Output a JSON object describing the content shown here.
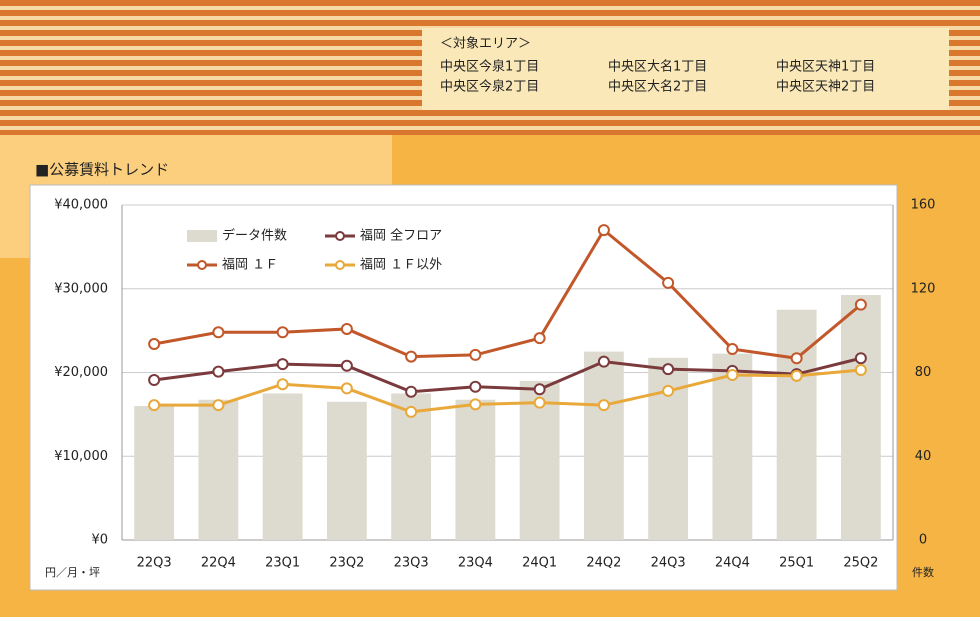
{
  "header": {
    "area_title": "＜対象エリア＞",
    "areas": [
      "中央区今泉1丁目",
      "中央区大名1丁目",
      "中央区天神1丁目",
      "中央区今泉2丁目",
      "中央区大名2丁目",
      "中央区天神2丁目"
    ]
  },
  "section_title": "■公募賃料トレンド",
  "chart_data": {
    "type": "bar-line",
    "y_unit_label": "円／月・坪",
    "y2_unit_label": "件数",
    "categories": [
      "22Q3",
      "22Q4",
      "23Q1",
      "23Q2",
      "23Q3",
      "23Q4",
      "24Q1",
      "24Q2",
      "24Q3",
      "24Q4",
      "25Q1",
      "25Q2"
    ],
    "ylim": [
      0,
      40000
    ],
    "yticks": [
      {
        "value": 0,
        "label": "¥0"
      },
      {
        "value": 10000,
        "label": "¥10,000"
      },
      {
        "value": 20000,
        "label": "¥20,000"
      },
      {
        "value": 30000,
        "label": "¥30,000"
      },
      {
        "value": 40000,
        "label": "¥40,000"
      }
    ],
    "y2lim": [
      0,
      160
    ],
    "y2ticks": [
      0,
      40,
      80,
      120,
      160
    ],
    "series": [
      {
        "name": "データ件数",
        "type": "bar",
        "axis": "y2",
        "color": "#dddbcf",
        "values": [
          64,
          67,
          70,
          66,
          70,
          67,
          76,
          90,
          87,
          89,
          110,
          117
        ]
      },
      {
        "name": "福岡 全フロア",
        "type": "line",
        "color": "#7b3a3c",
        "values": [
          19100,
          20100,
          21000,
          20800,
          17700,
          18300,
          18000,
          21300,
          20400,
          20200,
          19800,
          21700
        ]
      },
      {
        "name": "福岡 １Ｆ",
        "type": "line",
        "color": "#c2572a",
        "values": [
          23400,
          24800,
          24800,
          25200,
          21900,
          22100,
          24100,
          37000,
          30700,
          22800,
          21700,
          28100
        ]
      },
      {
        "name": "福岡 １Ｆ以外",
        "type": "line",
        "color": "#e8a83a",
        "values": [
          16100,
          16100,
          18600,
          18100,
          15300,
          16200,
          16400,
          16100,
          17800,
          19700,
          19600,
          20300
        ]
      }
    ]
  }
}
